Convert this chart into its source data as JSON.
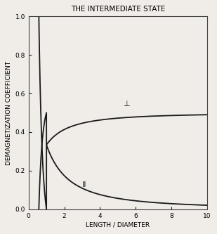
{
  "title": "THE INTERMEDIATE STATE",
  "xlabel": "LENGTH / DIAMETER",
  "ylabel": "DEMAGNETIZATION COEFFICIENT",
  "xlim": [
    0,
    10
  ],
  "ylim": [
    0,
    1.0
  ],
  "xticks": [
    0,
    2,
    4,
    6,
    8,
    10
  ],
  "yticks": [
    0,
    0.2,
    0.4,
    0.6,
    0.8,
    1.0
  ],
  "label_perp": "⊥",
  "label_para": "II",
  "line_color": "#1a1a1a",
  "background_color": "#f0ede8",
  "title_fontsize": 7.5,
  "label_fontsize": 6.5,
  "tick_fontsize": 6.5,
  "curve_label_fontsize": 8
}
